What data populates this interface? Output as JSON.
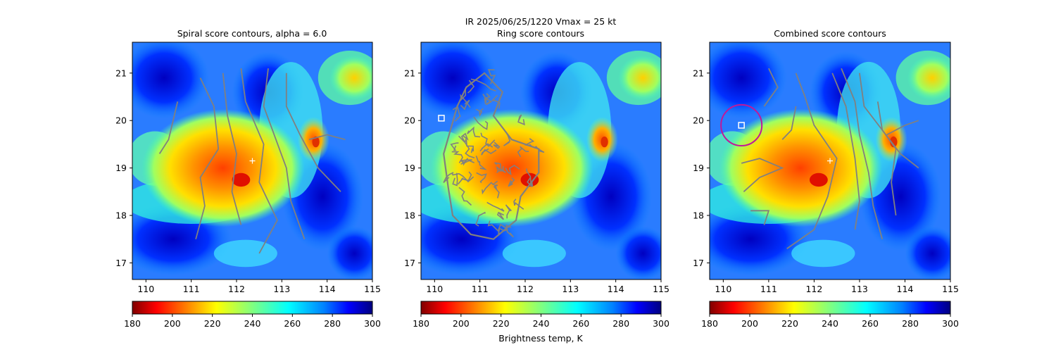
{
  "figure": {
    "suptitle_line1": "IR  2025/06/25/1220    Vmax = 25 kt",
    "colorbar_label": "Brightness temp, K"
  },
  "colors": {
    "contour": "#808080",
    "marker_cross": "#ffffff",
    "marker_square": "#ffffff",
    "ring_circle": "#c0189a",
    "colormap": "jet_r"
  },
  "chart_data": [
    {
      "type": "heatmap",
      "title": "Spiral score contours, alpha =  6.0",
      "x_range": [
        109.7,
        115.0
      ],
      "y_range": [
        16.65,
        21.65
      ],
      "x_ticks": [
        "110",
        "111",
        "112",
        "113",
        "114",
        "115"
      ],
      "y_ticks": [
        "17",
        "18",
        "19",
        "20",
        "21"
      ],
      "overlay": "spiral contours",
      "marker": {
        "shape": "cross",
        "lon": 112.35,
        "lat": 19.15
      },
      "colorbar": {
        "range": [
          180,
          300
        ],
        "ticks": [
          "180",
          "200",
          "220",
          "240",
          "260",
          "280",
          "300"
        ],
        "cmap": "jet_r"
      }
    },
    {
      "type": "heatmap",
      "title": "Ring score contours",
      "x_range": [
        109.7,
        115.0
      ],
      "y_range": [
        16.65,
        21.65
      ],
      "x_ticks": [
        "110",
        "111",
        "112",
        "113",
        "114",
        "115"
      ],
      "y_ticks": [
        "17",
        "18",
        "19",
        "20",
        "21"
      ],
      "overlay": "ring contours",
      "marker": {
        "shape": "square",
        "lon": 110.15,
        "lat": 20.05
      },
      "colorbar": {
        "range": [
          180,
          300
        ],
        "ticks": [
          "180",
          "200",
          "220",
          "240",
          "260",
          "280",
          "300"
        ],
        "cmap": "jet_r"
      }
    },
    {
      "type": "heatmap",
      "title": "Combined score contours",
      "x_range": [
        109.7,
        115.0
      ],
      "y_range": [
        16.65,
        21.65
      ],
      "x_ticks": [
        "110",
        "111",
        "112",
        "113",
        "114",
        "115"
      ],
      "y_ticks": [
        "17",
        "18",
        "19",
        "20",
        "21"
      ],
      "overlay": "combined contours",
      "marker": {
        "shape": "cross",
        "lon": 112.35,
        "lat": 19.15
      },
      "marker2": {
        "shape": "square",
        "lon": 110.4,
        "lat": 19.9
      },
      "circle": {
        "lon": 110.4,
        "lat": 19.9,
        "radius_deg": 0.45
      },
      "colorbar": {
        "range": [
          180,
          300
        ],
        "ticks": [
          "180",
          "200",
          "220",
          "240",
          "260",
          "280",
          "300"
        ],
        "cmap": "jet_r"
      }
    }
  ]
}
